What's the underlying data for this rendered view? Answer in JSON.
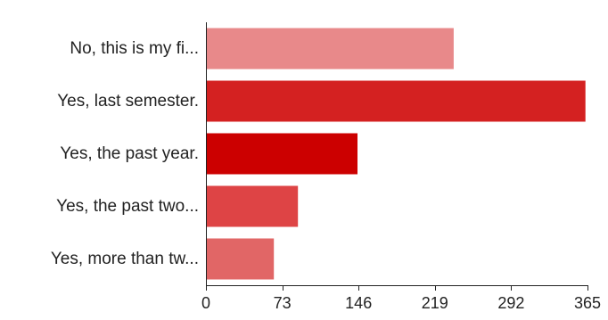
{
  "chart_data": {
    "type": "bar",
    "orientation": "horizontal",
    "title": "",
    "xlabel": "",
    "ylabel": "",
    "categories": [
      "No, this is my fi...",
      "Yes, last semester.",
      "Yes, the past year.",
      "Yes, the past two...",
      "Yes, more than tw..."
    ],
    "values": [
      237,
      363,
      145,
      88,
      65
    ],
    "colors": [
      "#e8898a",
      "#d42121",
      "#cc0000",
      "#de4445",
      "#e16666"
    ],
    "xlim": [
      0,
      365
    ],
    "xticks": [
      "0",
      "73",
      "146",
      "219",
      "292",
      "365"
    ],
    "grid": false,
    "legend": "none"
  }
}
